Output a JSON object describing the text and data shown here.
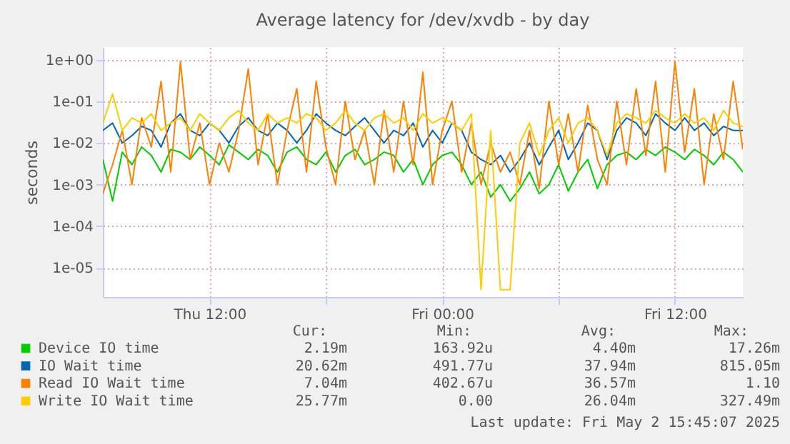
{
  "chart_data": {
    "type": "line",
    "title": "Average latency for /dev/xvdb - by day",
    "ylabel": "seconds",
    "x": [
      "2025-05-01T06:30",
      "2025-05-01T07:00",
      "2025-05-01T07:30",
      "2025-05-01T08:00",
      "2025-05-01T08:30",
      "2025-05-01T09:00",
      "2025-05-01T09:30",
      "2025-05-01T10:00",
      "2025-05-01T10:30",
      "2025-05-01T11:00",
      "2025-05-01T11:30",
      "2025-05-01T12:00",
      "2025-05-01T12:30",
      "2025-05-01T13:00",
      "2025-05-01T13:30",
      "2025-05-01T14:00",
      "2025-05-01T14:30",
      "2025-05-01T15:00",
      "2025-05-01T15:30",
      "2025-05-01T16:00",
      "2025-05-01T16:30",
      "2025-05-01T17:00",
      "2025-05-01T17:30",
      "2025-05-01T18:00",
      "2025-05-01T18:30",
      "2025-05-01T19:00",
      "2025-05-01T19:30",
      "2025-05-01T20:00",
      "2025-05-01T20:30",
      "2025-05-01T21:00",
      "2025-05-01T21:30",
      "2025-05-01T22:00",
      "2025-05-01T22:30",
      "2025-05-01T23:00",
      "2025-05-01T23:30",
      "2025-05-02T00:00",
      "2025-05-02T00:30",
      "2025-05-02T01:00",
      "2025-05-02T01:30",
      "2025-05-02T02:00",
      "2025-05-02T02:30",
      "2025-05-02T03:00",
      "2025-05-02T03:30",
      "2025-05-02T04:00",
      "2025-05-02T04:30",
      "2025-05-02T05:00",
      "2025-05-02T05:30",
      "2025-05-02T06:00",
      "2025-05-02T06:30",
      "2025-05-02T07:00",
      "2025-05-02T07:30",
      "2025-05-02T08:00",
      "2025-05-02T08:30",
      "2025-05-02T09:00",
      "2025-05-02T09:30",
      "2025-05-02T10:00",
      "2025-05-02T10:30",
      "2025-05-02T11:00",
      "2025-05-02T11:30",
      "2025-05-02T12:00",
      "2025-05-02T12:30",
      "2025-05-02T13:00",
      "2025-05-02T13:30",
      "2025-05-02T14:00",
      "2025-05-02T14:30",
      "2025-05-02T15:00",
      "2025-05-02T15:30"
    ],
    "series": [
      {
        "name": "Device IO time",
        "color": "#00cc00",
        "values": [
          0.004,
          0.0004,
          0.006,
          0.003,
          0.008,
          0.005,
          0.002,
          0.007,
          0.006,
          0.004,
          0.008,
          0.005,
          0.003,
          0.009,
          0.006,
          0.004,
          0.007,
          0.005,
          0.002,
          0.006,
          0.008,
          0.004,
          0.003,
          0.006,
          0.002,
          0.005,
          0.007,
          0.003,
          0.004,
          0.006,
          0.005,
          0.002,
          0.004,
          0.001,
          0.003,
          0.005,
          0.006,
          0.003,
          0.001,
          0.002,
          0.0005,
          0.001,
          0.0004,
          0.0008,
          0.002,
          0.0006,
          0.001,
          0.003,
          0.0007,
          0.002,
          0.004,
          0.0008,
          0.003,
          0.005,
          0.006,
          0.004,
          0.007,
          0.005,
          0.008,
          0.006,
          0.004,
          0.007,
          0.005,
          0.003,
          0.006,
          0.004,
          0.002
        ]
      },
      {
        "name": "IO Wait time",
        "color": "#0066b3",
        "values": [
          0.02,
          0.03,
          0.01,
          0.015,
          0.025,
          0.02,
          0.008,
          0.03,
          0.05,
          0.02,
          0.015,
          0.03,
          0.02,
          0.01,
          0.025,
          0.04,
          0.02,
          0.015,
          0.03,
          0.02,
          0.01,
          0.02,
          0.05,
          0.03,
          0.02,
          0.015,
          0.025,
          0.04,
          0.02,
          0.01,
          0.02,
          0.015,
          0.03,
          0.008,
          0.02,
          0.01,
          0.03,
          0.02,
          0.006,
          0.004,
          0.003,
          0.005,
          0.002,
          0.004,
          0.01,
          0.003,
          0.008,
          0.02,
          0.004,
          0.01,
          0.03,
          0.02,
          0.004,
          0.02,
          0.04,
          0.03,
          0.015,
          0.05,
          0.03,
          0.02,
          0.04,
          0.02,
          0.03,
          0.015,
          0.025,
          0.02,
          0.02
        ]
      },
      {
        "name": "Read IO Wait time",
        "color": "#ff8000",
        "values": [
          0.0006,
          0.003,
          0.02,
          0.001,
          0.04,
          0.008,
          0.3,
          0.002,
          0.9,
          0.004,
          0.03,
          0.001,
          0.01,
          0.002,
          0.02,
          0.6,
          0.003,
          0.05,
          0.001,
          0.02,
          0.2,
          0.002,
          0.3,
          0.008,
          0.001,
          0.1,
          0.004,
          0.02,
          0.001,
          0.06,
          0.002,
          0.1,
          0.003,
          0.5,
          0.001,
          0.02,
          0.1,
          0.002,
          0.03,
          0.001,
          0.01,
          0.002,
          0.006,
          0.001,
          0.02,
          0.0008,
          0.1,
          0.003,
          0.05,
          0.002,
          0.08,
          0.004,
          0.001,
          0.1,
          0.003,
          0.2,
          0.005,
          0.3,
          0.002,
          0.9,
          0.006,
          0.2,
          0.001,
          0.05,
          0.004,
          0.3,
          0.007
        ]
      },
      {
        "name": "Write IO Wait time",
        "color": "#ffcc00",
        "values": [
          0.03,
          0.15,
          0.02,
          0.04,
          0.03,
          0.05,
          0.02,
          0.03,
          0.04,
          0.02,
          0.05,
          0.03,
          0.02,
          0.04,
          0.06,
          0.03,
          0.02,
          0.05,
          0.03,
          0.04,
          0.03,
          0.05,
          0.04,
          0.02,
          0.03,
          0.06,
          0.03,
          0.02,
          0.04,
          0.05,
          0.03,
          0.04,
          0.02,
          0.05,
          0.03,
          0.04,
          0.03,
          0.02,
          0.05,
          3e-06,
          0.02,
          3e-06,
          3e-06,
          0.01,
          0.03,
          0.005,
          0.02,
          0.04,
          0.01,
          0.03,
          0.04,
          0.02,
          0.005,
          0.03,
          0.05,
          0.04,
          0.03,
          0.06,
          0.04,
          0.03,
          0.05,
          0.03,
          0.04,
          0.02,
          0.06,
          0.03,
          0.025
        ]
      }
    ],
    "log": "y",
    "xlim": [
      "2025-05-01T06:30",
      "2025-05-02T15:30"
    ],
    "xticks": [
      {
        "value": "2025-05-01T12:00",
        "label": "Thu 12:00"
      },
      {
        "value": "2025-05-01T18:00",
        "label": null
      },
      {
        "value": "2025-05-02T00:00",
        "label": "Fri 00:00"
      },
      {
        "value": "2025-05-02T06:00",
        "label": null
      },
      {
        "value": "2025-05-02T12:00",
        "label": "Fri 12:00"
      }
    ],
    "ylim": [
      2e-06,
      2
    ],
    "yticks": [
      {
        "value": 1e-05,
        "label": "1e-05"
      },
      {
        "value": 0.0001,
        "label": "1e-04"
      },
      {
        "value": 0.001,
        "label": "1e-03"
      },
      {
        "value": 0.01,
        "label": "1e-02"
      },
      {
        "value": 0.1,
        "label": "1e-01"
      },
      {
        "value": 1,
        "label": "1e+00"
      }
    ],
    "grid": true,
    "legend": "bottom",
    "marker": "none",
    "line_style": "solid",
    "annotations": [
      "Cur:",
      "Min:",
      "Avg:",
      "Max:",
      "2.19m",
      "163.92u",
      "4.40m",
      "17.26m",
      "20.62m",
      "491.77u",
      "37.94m",
      "815.05m",
      "7.04m",
      "402.67u",
      "36.57m",
      "1.10",
      "25.77m",
      "0.00",
      "26.04m",
      "327.49m",
      "Last update: Fri May  2 15:45:07 2025"
    ]
  }
}
